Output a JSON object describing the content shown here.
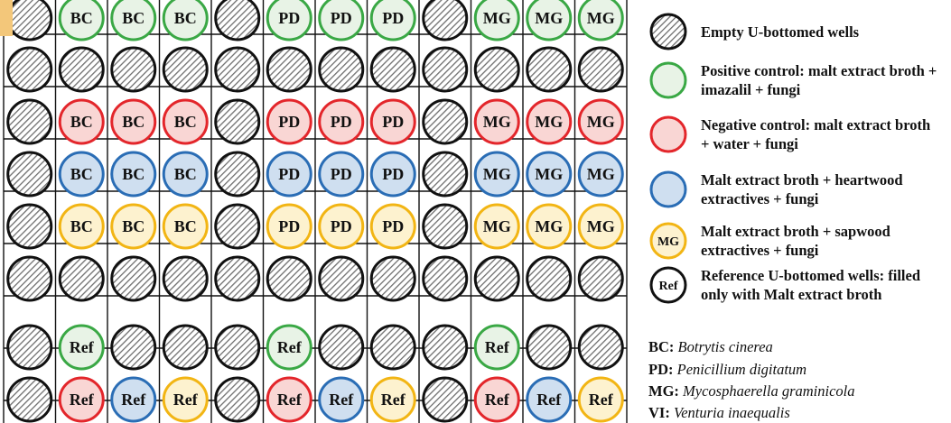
{
  "plate": {
    "rows": [
      [
        "E",
        "BC:G",
        "BC:G",
        "BC:G",
        "E",
        "PD:G",
        "PD:G",
        "PD:G",
        "E",
        "MG:G",
        "MG:G",
        "MG:G"
      ],
      [
        "E",
        "E",
        "E",
        "E",
        "E",
        "E",
        "E",
        "E",
        "E",
        "E",
        "E",
        "E"
      ],
      [
        "E",
        "BC:R",
        "BC:R",
        "BC:R",
        "E",
        "PD:R",
        "PD:R",
        "PD:R",
        "E",
        "MG:R",
        "MG:R",
        "MG:R"
      ],
      [
        "E",
        "BC:B",
        "BC:B",
        "BC:B",
        "E",
        "PD:B",
        "PD:B",
        "PD:B",
        "E",
        "MG:B",
        "MG:B",
        "MG:B"
      ],
      [
        "E",
        "BC:Y",
        "BC:Y",
        "BC:Y",
        "E",
        "PD:Y",
        "PD:Y",
        "PD:Y",
        "E",
        "MG:Y",
        "MG:Y",
        "MG:Y"
      ],
      [
        "E",
        "E",
        "E",
        "E",
        "E",
        "E",
        "E",
        "E",
        "E",
        "E",
        "E",
        "E"
      ],
      [
        "E",
        "Ref:G",
        "E",
        "E",
        "E",
        "Ref:G",
        "E",
        "E",
        "E",
        "Ref:G",
        "E",
        "E"
      ],
      [
        "E",
        "Ref:R",
        "Ref:B",
        "Ref:Y",
        "E",
        "Ref:R",
        "Ref:B",
        "Ref:Y",
        "E",
        "Ref:R",
        "Ref:B",
        "Ref:Y"
      ]
    ]
  },
  "colors": {
    "G": {
      "stroke": "#3aa845",
      "fill": "#e8f3e6"
    },
    "R": {
      "stroke": "#e3262b",
      "fill": "#f9d6d4"
    },
    "B": {
      "stroke": "#2a6db5",
      "fill": "#cfdff0"
    },
    "Y": {
      "stroke": "#f2b514",
      "fill": "#fdf2cf"
    },
    "K": {
      "stroke": "#111111",
      "fill": "#ffffff"
    },
    "grid": "#111111",
    "empty_hatch": "#777777"
  },
  "legend": {
    "items": [
      {
        "symbol": "hatched",
        "text": "Empty U-bottomed wells"
      },
      {
        "symbol": "G",
        "text": "Positive control: malt extract broth + imazalil + fungi"
      },
      {
        "symbol": "R",
        "text": "Negative control: malt extract broth + water + fungi"
      },
      {
        "symbol": "B",
        "text": "Malt extract broth + heartwood extractives + fungi"
      },
      {
        "symbol": "Y",
        "label": "MG",
        "text": "Malt extract broth + sapwood extractives + fungi"
      },
      {
        "symbol": "K",
        "label": "Ref",
        "text": "Reference U-bottomed wells: filled only with Malt extract broth"
      }
    ],
    "abbreviations": [
      {
        "code": "BC:",
        "name": "Botrytis cinerea"
      },
      {
        "code": "PD:",
        "name": "Penicillium digitatum"
      },
      {
        "code": "MG:",
        "name": "Mycosphaerella graminicola"
      },
      {
        "code": "VI:",
        "name": "Venturia inaequalis"
      }
    ]
  }
}
